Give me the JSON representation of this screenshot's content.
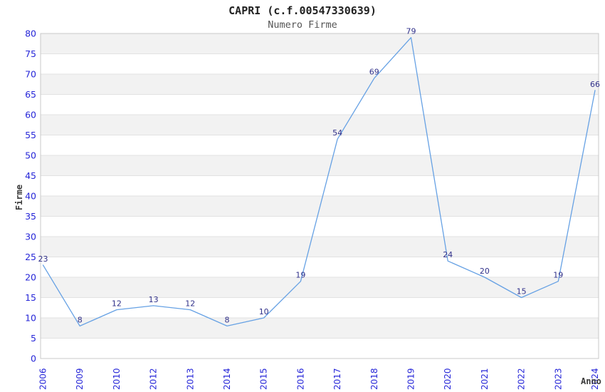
{
  "chart_data": {
    "type": "line",
    "title": "CAPRI (c.f.00547330639)",
    "subtitle": "Numero Firme",
    "xlabel": "Anno",
    "ylabel": "Firme",
    "categories": [
      "2006",
      "2009",
      "2010",
      "2012",
      "2013",
      "2014",
      "2015",
      "2016",
      "2017",
      "2018",
      "2019",
      "2020",
      "2021",
      "2022",
      "2023",
      "2024"
    ],
    "values": [
      23,
      8,
      12,
      13,
      12,
      8,
      10,
      19,
      54,
      69,
      79,
      24,
      20,
      15,
      19,
      66
    ],
    "ylim": [
      0,
      80
    ],
    "ytick_step": 5,
    "yticks": [
      0,
      5,
      10,
      15,
      20,
      25,
      30,
      35,
      40,
      45,
      50,
      55,
      60,
      65,
      70,
      75,
      80
    ],
    "grid": "alternating-horizontal-bands",
    "legend": "none",
    "data_labels_visible": true,
    "colors": {
      "line": "#66a1e4",
      "tick_labels": "#2626d8",
      "data_labels": "#31318a",
      "band_fill": "#f2f2f2",
      "gridline": "#e2e2e2",
      "frame": "#c8c8c8",
      "background": "#ffffff"
    }
  }
}
